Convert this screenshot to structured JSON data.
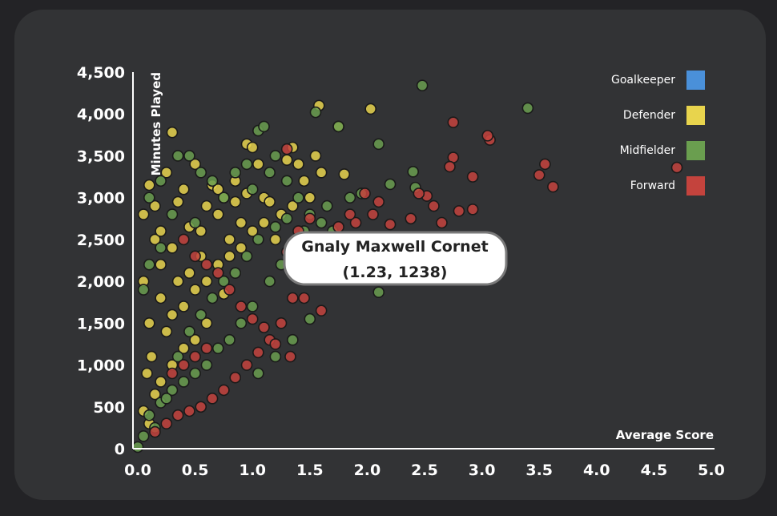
{
  "chart_data": {
    "type": "scatter",
    "title": "",
    "xlabel": "Average Score",
    "ylabel": "Minutes Played",
    "xlim": [
      0,
      5
    ],
    "ylim": [
      0,
      4500
    ],
    "xticks": [
      "0.0",
      "0.5",
      "1.0",
      "1.5",
      "2.0",
      "2.5",
      "3.0",
      "3.5",
      "4.0",
      "4.5",
      "5.0"
    ],
    "yticks": [
      "0",
      "500",
      "1,000",
      "1,500",
      "2,000",
      "2,500",
      "3,000",
      "3,500",
      "4,000",
      "4,500"
    ],
    "grid": false,
    "legend_position": "top-right",
    "series": [
      {
        "name": "Goalkeeper",
        "color": "#4a90d9",
        "points": []
      },
      {
        "name": "Defender",
        "color": "#e8d44d",
        "points": [
          [
            0.05,
            2800
          ],
          [
            0.1,
            3150
          ],
          [
            0.15,
            2500
          ],
          [
            0.2,
            2200
          ],
          [
            0.25,
            3300
          ],
          [
            0.3,
            3780
          ],
          [
            0.35,
            2950
          ],
          [
            0.4,
            3100
          ],
          [
            0.45,
            2650
          ],
          [
            0.5,
            3400
          ],
          [
            0.55,
            2600
          ],
          [
            0.6,
            2900
          ],
          [
            0.65,
            3150
          ],
          [
            0.7,
            2800
          ],
          [
            0.75,
            3000
          ],
          [
            0.8,
            2500
          ],
          [
            0.85,
            3200
          ],
          [
            0.9,
            2700
          ],
          [
            0.95,
            3640
          ],
          [
            1.0,
            3600
          ],
          [
            1.05,
            3400
          ],
          [
            1.1,
            3000
          ],
          [
            1.15,
            2950
          ],
          [
            1.2,
            2500
          ],
          [
            1.3,
            3450
          ],
          [
            1.35,
            3600
          ],
          [
            1.4,
            3400
          ],
          [
            1.45,
            3200
          ],
          [
            1.5,
            3000
          ],
          [
            1.55,
            3500
          ],
          [
            1.6,
            3300
          ],
          [
            1.75,
            3850
          ],
          [
            1.8,
            3280
          ],
          [
            1.58,
            4100
          ],
          [
            2.03,
            4060
          ],
          [
            0.1,
            1500
          ],
          [
            0.12,
            1100
          ],
          [
            0.08,
            900
          ],
          [
            0.2,
            1800
          ],
          [
            0.25,
            1400
          ],
          [
            0.3,
            1600
          ],
          [
            0.35,
            2000
          ],
          [
            0.4,
            1700
          ],
          [
            0.45,
            2100
          ],
          [
            0.5,
            1900
          ],
          [
            0.55,
            2300
          ],
          [
            0.6,
            2000
          ],
          [
            0.7,
            2200
          ],
          [
            0.75,
            1850
          ],
          [
            0.8,
            2300
          ],
          [
            0.15,
            650
          ],
          [
            0.05,
            450
          ],
          [
            0.1,
            300
          ],
          [
            0.2,
            800
          ],
          [
            0.3,
            1000
          ],
          [
            0.4,
            1200
          ],
          [
            0.5,
            1300
          ],
          [
            0.6,
            1500
          ],
          [
            0.9,
            2400
          ],
          [
            1.0,
            2600
          ],
          [
            1.1,
            2700
          ],
          [
            1.25,
            2800
          ],
          [
            1.35,
            2900
          ],
          [
            0.7,
            3100
          ],
          [
            0.85,
            2950
          ],
          [
            0.95,
            3050
          ],
          [
            0.3,
            2400
          ],
          [
            0.2,
            2600
          ],
          [
            0.15,
            2900
          ],
          [
            0.05,
            2000
          ]
        ]
      },
      {
        "name": "Midfielder",
        "color": "#6a9e4f",
        "points": [
          [
            0.1,
            3000
          ],
          [
            0.2,
            3200
          ],
          [
            0.35,
            3500
          ],
          [
            0.45,
            3500
          ],
          [
            0.55,
            3300
          ],
          [
            0.65,
            3200
          ],
          [
            0.75,
            3000
          ],
          [
            0.85,
            3300
          ],
          [
            0.95,
            3400
          ],
          [
            1.05,
            3800
          ],
          [
            1.1,
            3850
          ],
          [
            1.2,
            3500
          ],
          [
            1.3,
            3200
          ],
          [
            1.4,
            3000
          ],
          [
            1.5,
            2800
          ],
          [
            1.6,
            2700
          ],
          [
            1.7,
            2600
          ],
          [
            1.8,
            2500
          ],
          [
            1.9,
            2200
          ],
          [
            2.1,
            1870
          ],
          [
            1.55,
            4020
          ],
          [
            1.75,
            3850
          ],
          [
            2.48,
            4340
          ],
          [
            3.4,
            4070
          ],
          [
            2.1,
            3640
          ],
          [
            2.4,
            3310
          ],
          [
            2.42,
            3120
          ],
          [
            2.2,
            3160
          ],
          [
            1.95,
            3050
          ],
          [
            1.85,
            3000
          ],
          [
            1.65,
            2900
          ],
          [
            1.45,
            2600
          ],
          [
            1.35,
            2400
          ],
          [
            1.25,
            2200
          ],
          [
            1.15,
            2000
          ],
          [
            1.0,
            1700
          ],
          [
            0.9,
            1500
          ],
          [
            0.8,
            1300
          ],
          [
            0.7,
            1200
          ],
          [
            0.6,
            1000
          ],
          [
            0.5,
            900
          ],
          [
            0.4,
            800
          ],
          [
            0.3,
            700
          ],
          [
            0.2,
            550
          ],
          [
            0.1,
            400
          ],
          [
            0.0,
            20
          ],
          [
            0.05,
            150
          ],
          [
            0.15,
            250
          ],
          [
            0.25,
            600
          ],
          [
            0.35,
            1100
          ],
          [
            0.45,
            1400
          ],
          [
            0.55,
            1600
          ],
          [
            0.65,
            1800
          ],
          [
            0.75,
            2000
          ],
          [
            0.85,
            2100
          ],
          [
            0.95,
            2300
          ],
          [
            1.05,
            2500
          ],
          [
            1.2,
            2650
          ],
          [
            1.3,
            2750
          ],
          [
            1.05,
            900
          ],
          [
            1.2,
            1100
          ],
          [
            1.35,
            1300
          ],
          [
            1.5,
            1550
          ],
          [
            0.5,
            2700
          ],
          [
            0.3,
            2800
          ],
          [
            0.2,
            2400
          ],
          [
            0.1,
            2200
          ],
          [
            0.05,
            1900
          ],
          [
            1.0,
            3100
          ],
          [
            1.15,
            3300
          ]
        ]
      },
      {
        "name": "Forward",
        "color": "#c4433d",
        "points": [
          [
            4.7,
            3360
          ],
          [
            3.62,
            3130
          ],
          [
            3.55,
            3400
          ],
          [
            3.5,
            3270
          ],
          [
            3.07,
            3690
          ],
          [
            3.05,
            3740
          ],
          [
            2.92,
            3250
          ],
          [
            2.75,
            3900
          ],
          [
            2.75,
            3480
          ],
          [
            2.72,
            3370
          ],
          [
            2.65,
            2700
          ],
          [
            2.58,
            2900
          ],
          [
            2.52,
            3020
          ],
          [
            2.45,
            3050
          ],
          [
            2.38,
            2750
          ],
          [
            2.2,
            2680
          ],
          [
            2.1,
            2950
          ],
          [
            2.05,
            2800
          ],
          [
            1.98,
            3050
          ],
          [
            1.9,
            2700
          ],
          [
            2.92,
            2860
          ],
          [
            2.8,
            2840
          ],
          [
            1.85,
            2800
          ],
          [
            1.75,
            2650
          ],
          [
            1.65,
            2500
          ],
          [
            1.55,
            2300
          ],
          [
            1.45,
            2100
          ],
          [
            1.35,
            1800
          ],
          [
            1.25,
            1500
          ],
          [
            1.15,
            1300
          ],
          [
            1.05,
            1150
          ],
          [
            0.95,
            1000
          ],
          [
            0.85,
            850
          ],
          [
            0.75,
            700
          ],
          [
            0.65,
            600
          ],
          [
            0.55,
            500
          ],
          [
            0.45,
            450
          ],
          [
            0.35,
            400
          ],
          [
            0.25,
            300
          ],
          [
            0.15,
            200
          ],
          [
            1.6,
            1650
          ],
          [
            1.45,
            1800
          ],
          [
            1.33,
            1100
          ],
          [
            1.2,
            1250
          ],
          [
            1.1,
            1450
          ],
          [
            1.0,
            1550
          ],
          [
            0.9,
            1700
          ],
          [
            0.8,
            1900
          ],
          [
            0.7,
            2100
          ],
          [
            0.6,
            2200
          ],
          [
            0.5,
            2300
          ],
          [
            0.4,
            2500
          ],
          [
            1.3,
            2350
          ],
          [
            1.4,
            2600
          ],
          [
            1.5,
            2750
          ],
          [
            1.3,
            3580
          ],
          [
            0.3,
            900
          ],
          [
            0.4,
            1000
          ],
          [
            0.5,
            1100
          ],
          [
            0.6,
            1200
          ]
        ]
      }
    ],
    "tooltip": {
      "title": "Gnaly Maxwell Cornet",
      "value": "(1.23, 1238)",
      "x": 1.23,
      "y": 1238
    }
  }
}
